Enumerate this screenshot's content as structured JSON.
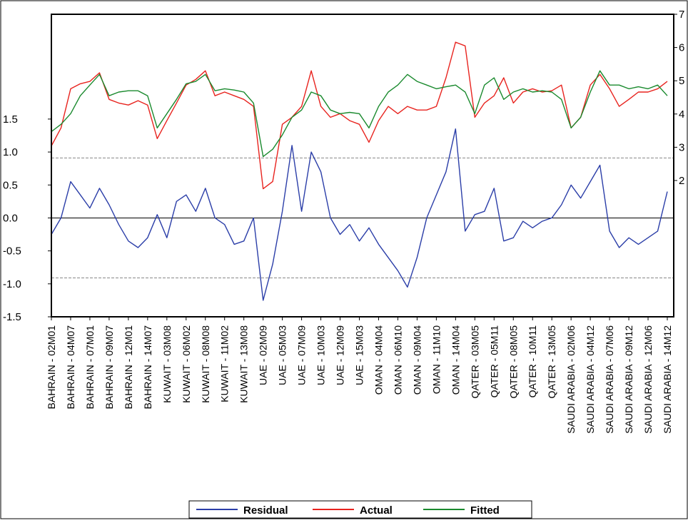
{
  "chart_data": {
    "type": "line",
    "categories": [
      "BAHRAIN - 02M01",
      null,
      "BAHRAIN - 04M07",
      null,
      "BAHRAIN - 07M01",
      null,
      "BAHRAIN - 09M07",
      null,
      "BAHRAIN - 12M01",
      null,
      "BAHRAIN - 14M07",
      null,
      "KUWAIT - 03M08",
      null,
      "KUWAIT - 06M02",
      null,
      "KUWAIT - 08M08",
      null,
      "KUWAIT - 11M02",
      null,
      "KUWAIT - 13M08",
      null,
      "UAE - 02M09",
      null,
      "UAE - 05M03",
      null,
      "UAE - 07M09",
      null,
      "UAE - 10M03",
      null,
      "UAE - 12M09",
      null,
      "UAE - 15M03",
      null,
      "OMAN - 04M04",
      null,
      "OMAN - 06M10",
      null,
      "OMAN - 09M04",
      null,
      "OMAN - 11M10",
      null,
      "OMAN - 14M04",
      null,
      "QATER - 03M05",
      null,
      "QATER - 05M11",
      null,
      "QATER - 08M05",
      null,
      "QATER - 10M11",
      null,
      "QATER - 13M05",
      null,
      "SAUDI ARABIA - 02M06",
      null,
      "SAUDI ARABIA - 04M12",
      null,
      "SAUDI ARABIA - 07M06",
      null,
      "SAUDI ARABIA - 09M12",
      null,
      "SAUDI ARABIA - 12M06",
      null,
      "SAUDI ARABIA - 14M12"
    ],
    "series": [
      {
        "name": "Residual",
        "color": "#2b3ea8",
        "axis": "y",
        "values": [
          -0.25,
          0.0,
          0.55,
          0.35,
          0.15,
          0.45,
          0.2,
          -0.1,
          -0.35,
          -0.45,
          -0.3,
          0.05,
          -0.3,
          0.25,
          0.35,
          0.1,
          0.45,
          0.0,
          -0.1,
          -0.4,
          -0.35,
          0.0,
          -1.25,
          -0.7,
          0.1,
          1.1,
          0.1,
          1.0,
          0.7,
          0.0,
          -0.25,
          -0.1,
          -0.35,
          -0.15,
          -0.4,
          -0.6,
          -0.8,
          -1.05,
          -0.6,
          0.0,
          0.35,
          0.7,
          1.35,
          -0.2,
          0.05,
          0.1,
          0.45,
          -0.35,
          -0.3,
          -0.05,
          -0.15,
          -0.05,
          0.0,
          0.2,
          0.5,
          0.3,
          0.55,
          0.8,
          -0.2,
          -0.45,
          -0.3,
          -0.4,
          -0.3,
          -0.2,
          0.4
        ]
      },
      {
        "name": "Actual",
        "color": "#e8231e",
        "axis": "y2",
        "values": [
          3.04,
          3.58,
          4.76,
          4.91,
          4.98,
          5.24,
          4.44,
          4.33,
          4.27,
          4.4,
          4.27,
          3.26,
          3.8,
          4.33,
          4.87,
          5.04,
          5.3,
          4.55,
          4.66,
          4.55,
          4.44,
          4.23,
          1.75,
          1.97,
          3.69,
          3.9,
          4.23,
          5.3,
          4.23,
          3.9,
          4.01,
          3.8,
          3.69,
          3.15,
          3.8,
          4.23,
          4.01,
          4.23,
          4.12,
          4.12,
          4.23,
          5.09,
          6.16,
          6.05,
          3.9,
          4.33,
          4.55,
          5.09,
          4.33,
          4.66,
          4.76,
          4.66,
          4.7,
          4.87,
          3.58,
          3.9,
          4.87,
          5.19,
          4.76,
          4.23,
          4.44,
          4.66,
          4.66,
          4.76,
          4.98
        ]
      },
      {
        "name": "Fitted",
        "color": "#1a8a2e",
        "axis": "y2",
        "values": [
          3.47,
          3.69,
          4.01,
          4.55,
          4.87,
          5.19,
          4.55,
          4.66,
          4.7,
          4.7,
          4.55,
          3.58,
          4.01,
          4.44,
          4.91,
          4.98,
          5.19,
          4.7,
          4.76,
          4.72,
          4.66,
          4.33,
          2.72,
          2.94,
          3.37,
          3.9,
          4.12,
          4.66,
          4.55,
          4.12,
          4.01,
          4.05,
          4.01,
          3.58,
          4.23,
          4.66,
          4.87,
          5.19,
          4.98,
          4.87,
          4.76,
          4.82,
          4.87,
          4.66,
          4.01,
          4.87,
          5.09,
          4.44,
          4.66,
          4.76,
          4.66,
          4.7,
          4.66,
          4.44,
          3.58,
          3.9,
          4.66,
          5.3,
          4.87,
          4.87,
          4.76,
          4.82,
          4.76,
          4.87,
          4.55
        ]
      }
    ],
    "ylim": [
      -1.5,
      3.09
    ],
    "yticks": [
      {
        "value": -1.5,
        "label": "-1.5"
      },
      {
        "value": -1,
        "label": "-1.0"
      },
      {
        "value": -0.5,
        "label": "-0.5"
      },
      {
        "value": 0,
        "label": "0.0"
      },
      {
        "value": 0.5,
        "label": "0.5"
      },
      {
        "value": 1,
        "label": "1.0"
      },
      {
        "value": 1.5,
        "label": "1.5"
      }
    ],
    "y2lim": [
      -2.1,
      7
    ],
    "y2ticks": [
      2,
      3,
      4,
      5,
      6,
      7
    ],
    "reference_lines": {
      "solid": [
        0
      ],
      "dashed": [
        -0.91,
        0.91
      ]
    },
    "legend": "bottom"
  }
}
